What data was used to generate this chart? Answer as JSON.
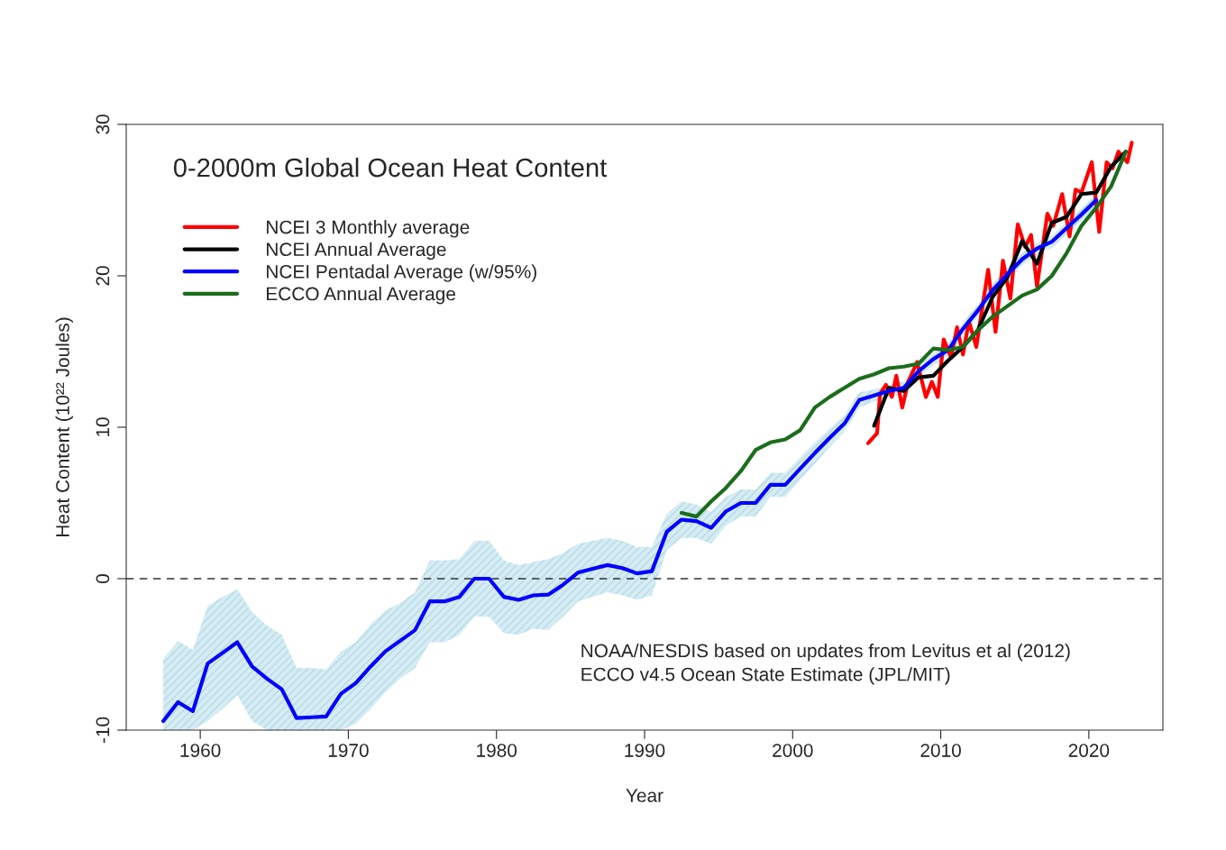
{
  "chart_data": {
    "type": "line",
    "title": "0-2000m Global Ocean Heat Content",
    "xlabel": "Year",
    "ylabel": "Heat Content (10²² Joules)",
    "xlim": [
      1955,
      2025
    ],
    "xticks": [
      1960,
      1970,
      1980,
      1990,
      2000,
      2010,
      2020
    ],
    "ylim": [
      -10,
      30
    ],
    "yticks": [
      -10,
      0,
      10,
      20,
      30
    ],
    "grid": false,
    "legend": "top left",
    "line_style": "solid",
    "marker": "none",
    "ref_lines": [
      {
        "axis": "y",
        "value": 0,
        "line_style": "dashed",
        "color": "#333333"
      }
    ],
    "annotations": [
      "NOAA/NESDIS based on updates from Levitus et al (2012)",
      "ECCO v4.5 Ocean State Estimate (JPL/MIT)"
    ],
    "series": [
      {
        "name": "NCEI 3 Monthly average",
        "color": "#ff0000",
        "x": [
          2005.1,
          2005.7,
          2005.9,
          2006.3,
          2006.7,
          2007.0,
          2007.4,
          2007.8,
          2008.4,
          2009.0,
          2009.4,
          2009.8,
          2010.2,
          2010.7,
          2011.1,
          2011.5,
          2011.9,
          2012.4,
          2013.2,
          2013.7,
          2014.2,
          2014.7,
          2015.2,
          2015.7,
          2016.1,
          2016.5,
          2017.2,
          2017.6,
          2018.2,
          2018.7,
          2019.1,
          2019.5,
          2020.2,
          2020.7,
          2021.2,
          2021.6,
          2022.0,
          2022.6,
          2022.9
        ],
        "values": [
          8.95,
          9.6,
          12.2,
          12.8,
          12.0,
          13.4,
          11.3,
          13.0,
          14.3,
          12.0,
          13.0,
          12.0,
          15.8,
          14.6,
          16.6,
          14.8,
          17.0,
          15.3,
          20.4,
          16.3,
          21.0,
          18.5,
          23.4,
          21.9,
          22.7,
          19.3,
          24.1,
          23.3,
          25.4,
          22.6,
          25.7,
          25.5,
          27.5,
          22.9,
          27.5,
          27.1,
          28.2,
          27.5,
          28.8
        ]
      },
      {
        "name": "NCEI Annual Average",
        "color": "#000000",
        "x": [
          2005.5,
          2006.5,
          2007.5,
          2008.5,
          2009.5,
          2010.5,
          2011.5,
          2012.5,
          2013.5,
          2014.5,
          2015.5,
          2016.5,
          2017.5,
          2018.5,
          2019.5,
          2020.5,
          2021.5,
          2022.5
        ],
        "values": [
          10.1,
          12.6,
          12.4,
          13.3,
          13.4,
          14.4,
          15.3,
          16.4,
          18.6,
          19.9,
          22.3,
          20.8,
          23.5,
          23.9,
          25.4,
          25.5,
          27.2,
          28.2
        ]
      },
      {
        "name": "NCEI Pentadal Average (w/95%)",
        "color": "#0000ff",
        "x": [
          1957.5,
          1958.5,
          1959.5,
          1960.5,
          1961.5,
          1962.5,
          1963.5,
          1964.5,
          1965.5,
          1966.5,
          1967.5,
          1968.5,
          1969.5,
          1970.5,
          1971.5,
          1972.5,
          1973.5,
          1974.5,
          1975.5,
          1976.5,
          1977.5,
          1978.5,
          1979.5,
          1980.5,
          1981.5,
          1982.5,
          1983.5,
          1984.5,
          1985.5,
          1986.5,
          1987.5,
          1988.5,
          1989.5,
          1990.5,
          1991.5,
          1992.5,
          1993.5,
          1994.5,
          1995.5,
          1996.5,
          1997.5,
          1998.5,
          1999.5,
          2000.5,
          2001.5,
          2002.5,
          2003.5,
          2004.5,
          2005.5,
          2006.5,
          2007.5,
          2008.5,
          2009.5,
          2010.5,
          2011.5,
          2012.5,
          2013.5,
          2014.5,
          2015.5,
          2016.5,
          2017.5,
          2018.5,
          2019.5,
          2020.5
        ],
        "values": [
          -9.4,
          -8.15,
          -8.75,
          -5.6,
          -4.9,
          -4.2,
          -5.8,
          -6.6,
          -7.3,
          -9.2,
          -9.15,
          -9.1,
          -7.6,
          -6.9,
          -5.8,
          -4.8,
          -4.1,
          -3.4,
          -1.5,
          -1.5,
          -1.2,
          0.0,
          0.0,
          -1.2,
          -1.4,
          -1.1,
          -1.05,
          -0.4,
          0.4,
          0.65,
          0.9,
          0.7,
          0.35,
          0.5,
          3.1,
          3.9,
          3.8,
          3.35,
          4.45,
          5.0,
          5.0,
          6.2,
          6.2,
          7.25,
          8.3,
          9.3,
          10.25,
          11.8,
          12.1,
          12.4,
          12.6,
          13.7,
          14.5,
          15.1,
          16.5,
          17.7,
          19.05,
          20.1,
          21.1,
          21.8,
          22.25,
          23.15,
          24.05,
          25.0
        ],
        "upper": [
          -5.3,
          -4.1,
          -4.7,
          -1.8,
          -1.2,
          -0.7,
          -2.2,
          -3.1,
          -3.7,
          -5.9,
          -5.9,
          -6.0,
          -4.8,
          -4.2,
          -3.0,
          -2.1,
          -1.6,
          -0.9,
          1.2,
          1.2,
          1.3,
          2.5,
          2.5,
          1.2,
          0.9,
          1.1,
          1.3,
          1.7,
          2.3,
          2.5,
          2.7,
          2.5,
          2.1,
          2.1,
          4.3,
          5.1,
          4.9,
          4.4,
          5.4,
          5.9,
          5.9,
          7.0,
          7.0,
          8.0,
          9.0,
          9.9,
          10.8,
          12.3,
          12.5,
          12.8,
          13.0,
          14.1,
          14.9,
          15.5,
          16.9,
          18.1,
          19.45,
          20.5,
          21.5,
          22.2,
          22.65,
          23.55,
          24.45,
          25.4
        ],
        "lower": [
          -10,
          -10,
          -10,
          -9.4,
          -8.6,
          -7.7,
          -9.4,
          -10,
          -10,
          -10,
          -10,
          -10,
          -10,
          -9.6,
          -8.6,
          -7.5,
          -6.6,
          -5.9,
          -4.2,
          -4.2,
          -3.7,
          -2.5,
          -2.5,
          -3.6,
          -3.7,
          -3.3,
          -3.4,
          -2.5,
          -1.5,
          -1.2,
          -0.9,
          -1.1,
          -1.4,
          -1.1,
          1.9,
          2.7,
          2.7,
          2.3,
          3.5,
          4.1,
          4.1,
          5.4,
          5.4,
          6.5,
          7.6,
          8.7,
          9.7,
          11.3,
          11.7,
          12.0,
          12.2,
          13.3,
          14.1,
          14.7,
          16.1,
          17.3,
          18.65,
          19.7,
          20.7,
          21.4,
          21.85,
          22.75,
          23.65,
          24.6
        ]
      },
      {
        "name": "ECCO Annual Average",
        "color": "#1b6d1b",
        "x": [
          1992.5,
          1993.5,
          1994.5,
          1995.5,
          1996.5,
          1997.5,
          1998.5,
          1999.5,
          2000.5,
          2001.5,
          2002.5,
          2003.5,
          2004.5,
          2005.5,
          2006.5,
          2007.5,
          2008.5,
          2009.5,
          2010.5,
          2011.5,
          2012.5,
          2013.5,
          2014.5,
          2015.5,
          2016.5,
          2017.5,
          2018.5,
          2019.5,
          2020.5,
          2021.5,
          2022.5
        ],
        "values": [
          4.35,
          4.1,
          5.1,
          6.0,
          7.1,
          8.5,
          9.0,
          9.2,
          9.8,
          11.3,
          12.0,
          12.6,
          13.2,
          13.5,
          13.9,
          14.0,
          14.2,
          15.2,
          15.1,
          15.3,
          16.4,
          17.3,
          18.0,
          18.7,
          19.1,
          20.0,
          21.5,
          23.3,
          24.5,
          25.9,
          28.2
        ]
      }
    ]
  }
}
